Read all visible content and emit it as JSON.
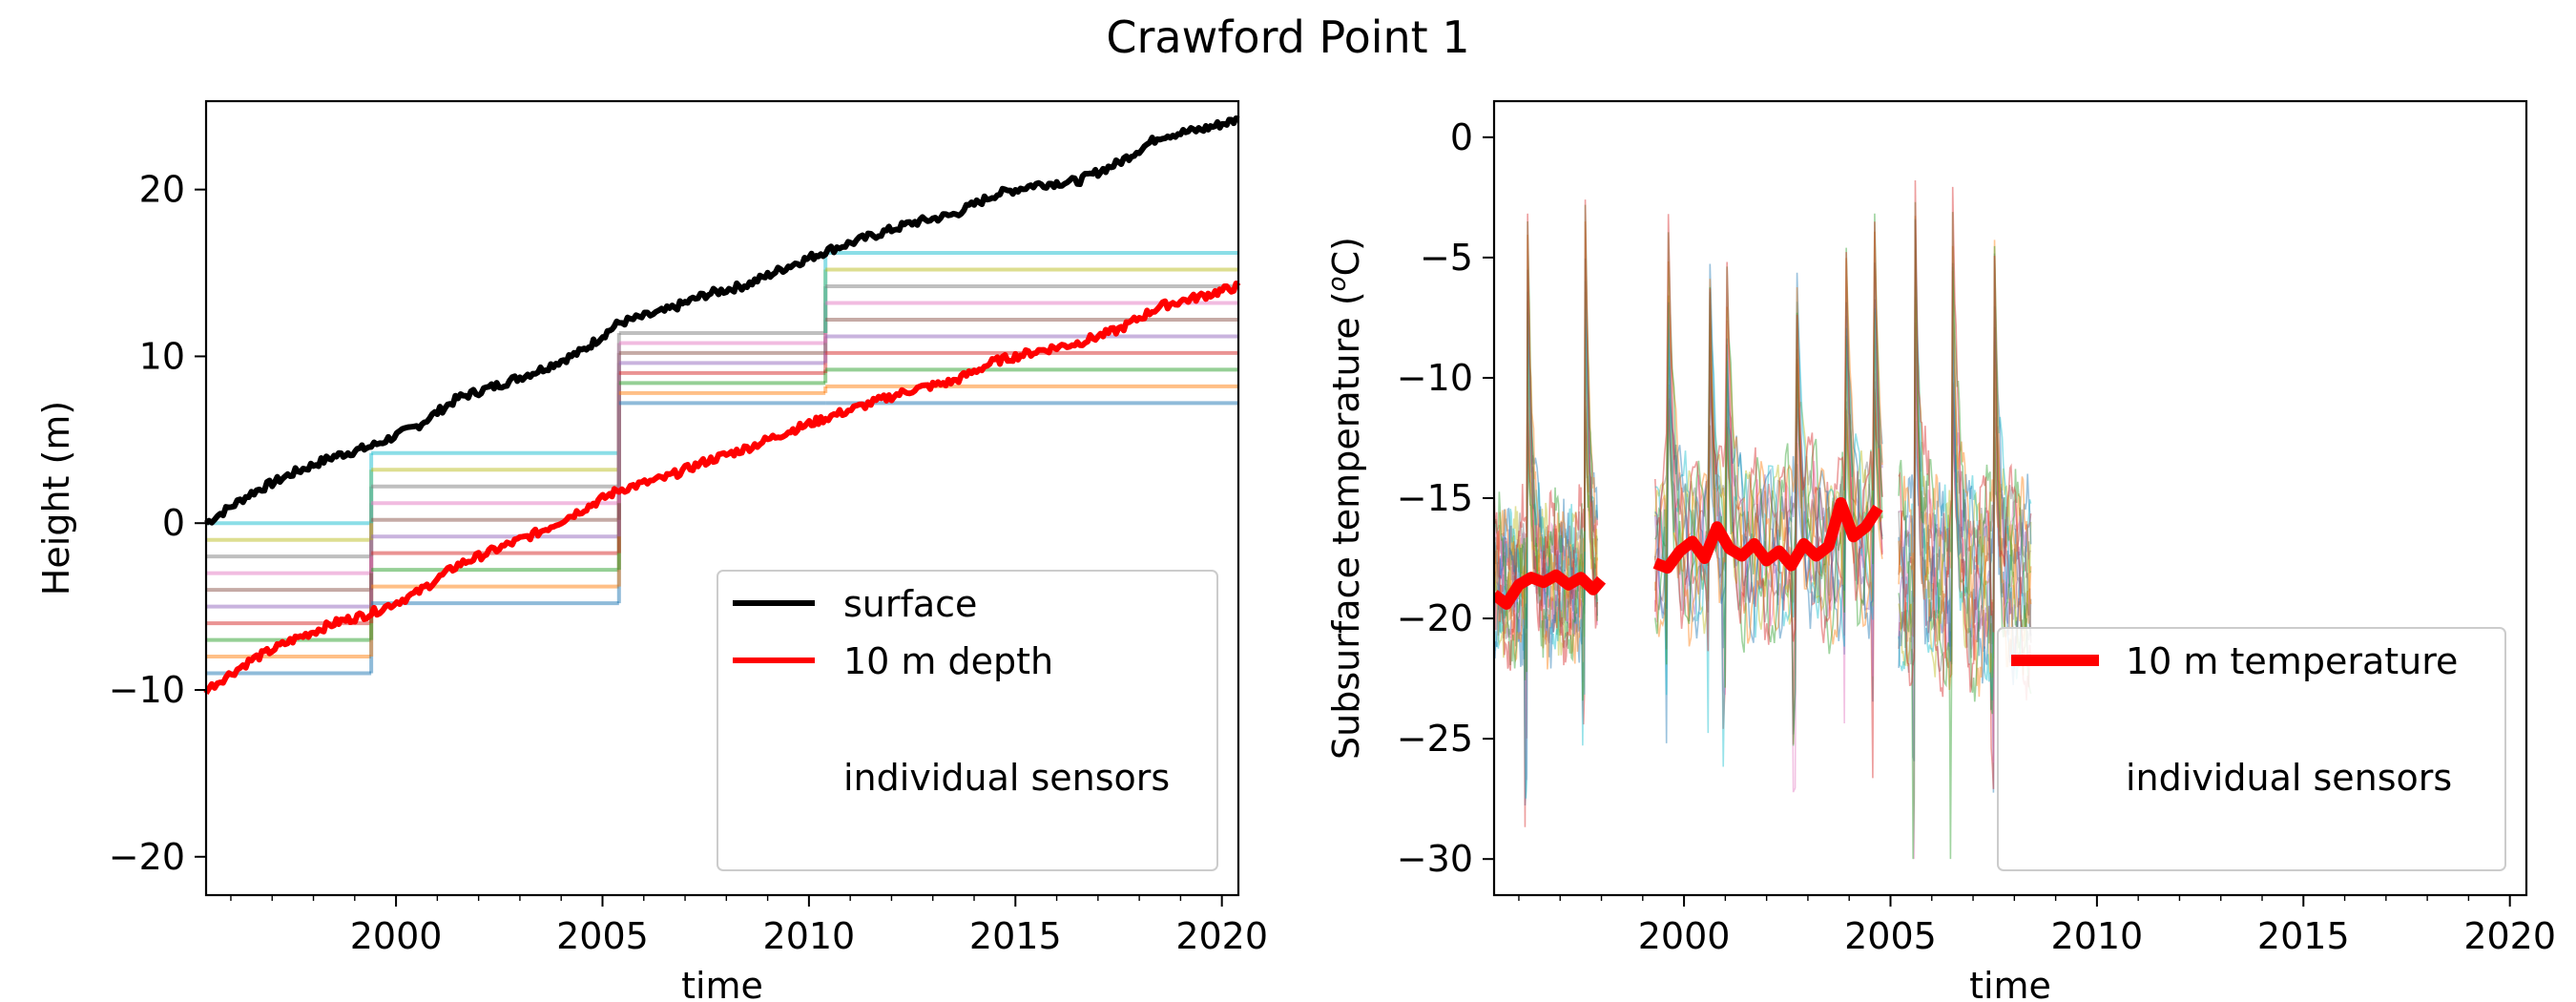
{
  "figure_title": "Crawford Point 1",
  "chart_data": [
    {
      "type": "line",
      "title": "",
      "xlabel": "time",
      "ylabel": "Height (m)",
      "xlim": [
        1995.4,
        2020.4
      ],
      "ylim": [
        -22.3,
        25.3
      ],
      "xticks": [
        2000,
        2005,
        2010,
        2015,
        2020
      ],
      "yticks": [
        -20,
        -10,
        0,
        10,
        20
      ],
      "grid": false,
      "legend": {
        "location": "lower-right",
        "entries": [
          "surface",
          "10 m depth",
          "individual sensors"
        ]
      },
      "series": [
        {
          "name": "surface",
          "color": "#000000",
          "x": [
            1995.4,
            1996.5,
            1997.5,
            1998.5,
            1999.4,
            2000.5,
            2001.5,
            2002.5,
            2003.5,
            2004.5,
            2005.4,
            2006.5,
            2007.5,
            2008.5,
            2009.5,
            2010.4,
            2011.5,
            2012.5,
            2013.5,
            2014.5,
            2015.5,
            2016.5,
            2017.5,
            2018.5,
            2019.5,
            2020.4
          ],
          "y": [
            0,
            1.8,
            3.0,
            4.0,
            4.6,
            5.8,
            7.5,
            8.3,
            9.2,
            10.3,
            12.0,
            12.7,
            13.7,
            14.3,
            15.4,
            16.3,
            17.2,
            18.0,
            18.5,
            19.7,
            20.3,
            20.5,
            21.6,
            23.2,
            23.6,
            24.2
          ]
        },
        {
          "name": "10 m depth",
          "color": "#ff0000",
          "x": [
            1995.4,
            1996.5,
            1997.5,
            1998.5,
            1999.4,
            2000.5,
            2001.5,
            2002.5,
            2003.5,
            2004.5,
            2005.4,
            2006.5,
            2007.5,
            2008.5,
            2009.5,
            2010.4,
            2011.5,
            2012.5,
            2013.5,
            2014.5,
            2015.5,
            2016.5,
            2017.5,
            2018.5,
            2019.5,
            2020.4
          ],
          "y": [
            -10,
            -8.2,
            -7.0,
            -6.0,
            -5.4,
            -4.2,
            -2.5,
            -1.5,
            -0.5,
            0.8,
            2.0,
            2.7,
            3.7,
            4.5,
            5.5,
            6.3,
            7.2,
            8.0,
            8.5,
            9.7,
            10.3,
            10.8,
            11.6,
            13.0,
            13.6,
            14.2
          ]
        }
      ],
      "sensor_periods": [
        {
          "x_start": 1995.4,
          "x_end": 1999.4,
          "levels": [
            -9,
            -8,
            -7,
            -6,
            -5,
            -4,
            -3,
            -2,
            -1,
            0
          ]
        },
        {
          "x_start": 1999.4,
          "x_end": 2005.4,
          "levels": [
            -4.8,
            -3.8,
            -2.8,
            -1.8,
            -0.8,
            0.2,
            1.2,
            2.2,
            3.2,
            4.2
          ]
        },
        {
          "x_start": 2005.4,
          "x_end": 2010.4,
          "levels": [
            7.2,
            7.8,
            8.4,
            9.0,
            9.6,
            10.2,
            10.8,
            11.4
          ]
        },
        {
          "x_start": 2010.4,
          "x_end": 2020.4,
          "levels": [
            7.2,
            8.2,
            9.2,
            10.2,
            11.2,
            12.2,
            13.2,
            14.2,
            15.2,
            16.2
          ]
        }
      ]
    },
    {
      "type": "line",
      "title": "",
      "xlabel": "time",
      "ylabel": "Subsurface temperature (°C)",
      "ylabel_main": "Subsurface temperature (",
      "ylabel_unit_sup": "o",
      "ylabel_unit": "C)",
      "xlim": [
        1995.4,
        2020.4
      ],
      "ylim": [
        -31.5,
        1.5
      ],
      "xticks": [
        2000,
        2005,
        2010,
        2015,
        2020
      ],
      "yticks": [
        -30,
        -25,
        -20,
        -15,
        -10,
        -5,
        0
      ],
      "grid": false,
      "legend": {
        "location": "lower-right",
        "entries": [
          "10 m temperature",
          "individual sensors"
        ]
      },
      "series": [
        {
          "name": "10 m temperature",
          "color": "#ff0000",
          "segments": [
            {
              "x": [
                1995.4,
                1995.7,
                1996.0,
                1996.3,
                1996.6,
                1996.9,
                1997.2,
                1997.5,
                1997.8,
                1998.0
              ],
              "y": [
                -19.0,
                -19.4,
                -18.6,
                -18.3,
                -18.5,
                -18.2,
                -18.6,
                -18.3,
                -18.8,
                -18.4
              ]
            },
            {
              "x": [
                1999.3,
                1999.6,
                1999.9,
                2000.2,
                2000.5,
                2000.8,
                2001.1,
                2001.4,
                2001.7,
                2002.0,
                2002.3,
                2002.6,
                2002.9,
                2003.2,
                2003.5,
                2003.8,
                2004.1,
                2004.4,
                2004.7
              ],
              "y": [
                -17.7,
                -17.9,
                -17.2,
                -16.8,
                -17.5,
                -16.2,
                -17.1,
                -17.4,
                -16.9,
                -17.6,
                -17.2,
                -17.8,
                -16.9,
                -17.4,
                -17.0,
                -15.2,
                -16.6,
                -16.2,
                -15.4
              ]
            }
          ]
        }
      ],
      "sensor_color_cycle": [
        "#1f77b4",
        "#ff7f0e",
        "#2ca02c",
        "#d62728",
        "#9467bd",
        "#8c564b",
        "#e377c2",
        "#7f7f7f",
        "#bcbd22",
        "#17becf"
      ]
    }
  ]
}
